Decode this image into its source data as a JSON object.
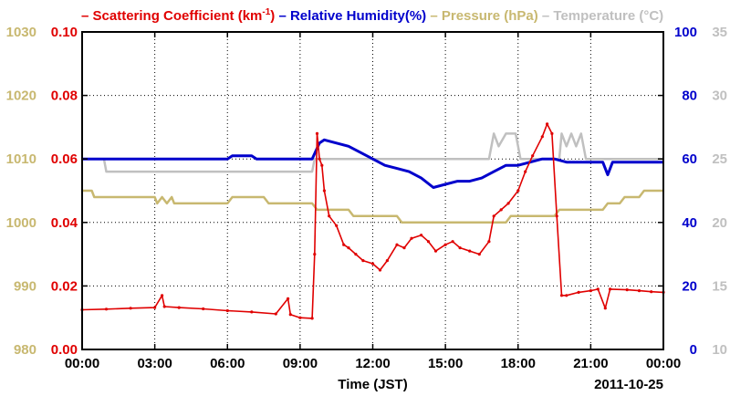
{
  "chart_data": {
    "type": "line",
    "legend": {
      "placement": "top",
      "items": [
        {
          "marker": "–",
          "label": "Scattering Coefficient (km",
          "sup": "-1",
          "suffix": ")",
          "color": "#e00000"
        },
        {
          "marker": "–",
          "label": "Relative Humidity(%)",
          "color": "#0000cc"
        },
        {
          "marker": "–",
          "label": "Pressure (hPa)",
          "color": "#c8b870"
        },
        {
          "marker": "–",
          "label": "Temperature (°C)",
          "color": "#c0c0c0"
        }
      ]
    },
    "xlabel": "Time (JST)",
    "date_label": "2011-10-25",
    "x_ticks": [
      "00:00",
      "03:00",
      "06:00",
      "09:00",
      "12:00",
      "15:00",
      "18:00",
      "21:00",
      "00:00"
    ],
    "x_range_hours": [
      0,
      24
    ],
    "grid": true,
    "axes": {
      "pressure": {
        "range": [
          980,
          1030
        ],
        "ticks": [
          "980",
          "990",
          "1000",
          "1010",
          "1020",
          "1030"
        ],
        "color": "#c8b870"
      },
      "scattering": {
        "range": [
          0,
          0.1
        ],
        "ticks": [
          "0.00",
          "0.02",
          "0.04",
          "0.06",
          "0.08",
          "0.10"
        ],
        "color": "#e00000"
      },
      "humidity": {
        "range": [
          0,
          100
        ],
        "ticks": [
          "0",
          "20",
          "40",
          "60",
          "80",
          "100"
        ],
        "color": "#0000cc"
      },
      "temperature": {
        "range": [
          10,
          35
        ],
        "ticks": [
          "10",
          "15",
          "20",
          "25",
          "30",
          "35"
        ],
        "color": "#c0c0c0"
      }
    },
    "series": [
      {
        "key": "scattering",
        "axis": "scattering",
        "color": "#e00000",
        "points": [
          [
            0,
            0.0125
          ],
          [
            1,
            0.0127
          ],
          [
            2,
            0.013
          ],
          [
            3,
            0.0132
          ],
          [
            3.3,
            0.017
          ],
          [
            3.4,
            0.0135
          ],
          [
            4,
            0.0132
          ],
          [
            5,
            0.0128
          ],
          [
            6,
            0.0122
          ],
          [
            7,
            0.0118
          ],
          [
            8,
            0.0112
          ],
          [
            8.5,
            0.016
          ],
          [
            8.6,
            0.011
          ],
          [
            9.0,
            0.01
          ],
          [
            9.5,
            0.0098
          ],
          [
            9.6,
            0.03
          ],
          [
            9.7,
            0.068
          ],
          [
            9.8,
            0.06
          ],
          [
            9.9,
            0.058
          ],
          [
            10.0,
            0.05
          ],
          [
            10.2,
            0.042
          ],
          [
            10.5,
            0.039
          ],
          [
            10.8,
            0.033
          ],
          [
            11.0,
            0.032
          ],
          [
            11.3,
            0.03
          ],
          [
            11.6,
            0.028
          ],
          [
            12.0,
            0.027
          ],
          [
            12.3,
            0.025
          ],
          [
            12.6,
            0.028
          ],
          [
            13.0,
            0.033
          ],
          [
            13.3,
            0.032
          ],
          [
            13.6,
            0.035
          ],
          [
            14.0,
            0.036
          ],
          [
            14.3,
            0.034
          ],
          [
            14.6,
            0.031
          ],
          [
            15.0,
            0.033
          ],
          [
            15.3,
            0.034
          ],
          [
            15.6,
            0.032
          ],
          [
            16.0,
            0.031
          ],
          [
            16.4,
            0.03
          ],
          [
            16.8,
            0.034
          ],
          [
            17.0,
            0.042
          ],
          [
            17.3,
            0.044
          ],
          [
            17.6,
            0.046
          ],
          [
            18.0,
            0.05
          ],
          [
            18.3,
            0.056
          ],
          [
            18.6,
            0.061
          ],
          [
            19.0,
            0.067
          ],
          [
            19.2,
            0.071
          ],
          [
            19.4,
            0.068
          ],
          [
            19.6,
            0.042
          ],
          [
            19.8,
            0.017
          ],
          [
            20.0,
            0.017
          ],
          [
            20.5,
            0.018
          ],
          [
            21.0,
            0.0185
          ],
          [
            21.3,
            0.019
          ],
          [
            21.6,
            0.013
          ],
          [
            21.8,
            0.019
          ],
          [
            22.5,
            0.0188
          ],
          [
            23.0,
            0.0185
          ],
          [
            23.5,
            0.0182
          ],
          [
            24,
            0.018
          ]
        ]
      },
      {
        "key": "humidity",
        "axis": "humidity",
        "color": "#0000cc",
        "points": [
          [
            0,
            60
          ],
          [
            2,
            60
          ],
          [
            4,
            60
          ],
          [
            6,
            60
          ],
          [
            6.2,
            61
          ],
          [
            7,
            61
          ],
          [
            7.2,
            60
          ],
          [
            9.5,
            60
          ],
          [
            9.8,
            65
          ],
          [
            10.0,
            66
          ],
          [
            10.5,
            65
          ],
          [
            11.0,
            64
          ],
          [
            11.5,
            62
          ],
          [
            12.0,
            60
          ],
          [
            12.5,
            58
          ],
          [
            13.0,
            57
          ],
          [
            13.5,
            56
          ],
          [
            14.0,
            54
          ],
          [
            14.5,
            51
          ],
          [
            15.0,
            52
          ],
          [
            15.5,
            53
          ],
          [
            16.0,
            53
          ],
          [
            16.5,
            54
          ],
          [
            17.0,
            56
          ],
          [
            17.5,
            58
          ],
          [
            18.0,
            58
          ],
          [
            18.5,
            59
          ],
          [
            19.0,
            60
          ],
          [
            19.5,
            60
          ],
          [
            20.0,
            59
          ],
          [
            21.0,
            59
          ],
          [
            21.5,
            59
          ],
          [
            21.7,
            55
          ],
          [
            21.9,
            59
          ],
          [
            22.5,
            59
          ],
          [
            23,
            59
          ],
          [
            24,
            59
          ]
        ]
      },
      {
        "key": "pressure",
        "axis": "pressure",
        "color": "#c8b870",
        "points": [
          [
            0,
            1005
          ],
          [
            0.4,
            1005
          ],
          [
            0.5,
            1004
          ],
          [
            3,
            1004
          ],
          [
            3.1,
            1003
          ],
          [
            3.3,
            1004
          ],
          [
            3.5,
            1003
          ],
          [
            3.7,
            1004
          ],
          [
            3.8,
            1003
          ],
          [
            6,
            1003
          ],
          [
            6.2,
            1004
          ],
          [
            7.5,
            1004
          ],
          [
            7.7,
            1003
          ],
          [
            9.5,
            1003
          ],
          [
            9.7,
            1002
          ],
          [
            11,
            1002
          ],
          [
            11.2,
            1001
          ],
          [
            13,
            1001
          ],
          [
            13.2,
            1000
          ],
          [
            17.5,
            1000
          ],
          [
            17.7,
            1001
          ],
          [
            19.5,
            1001
          ],
          [
            19.7,
            1002
          ],
          [
            21.5,
            1002
          ],
          [
            21.7,
            1003
          ],
          [
            22.2,
            1003
          ],
          [
            22.4,
            1004
          ],
          [
            23,
            1004
          ],
          [
            23.2,
            1005
          ],
          [
            24,
            1005
          ]
        ]
      },
      {
        "key": "temperature",
        "axis": "temperature",
        "color": "#c0c0c0",
        "points": [
          [
            0,
            25
          ],
          [
            0.9,
            25
          ],
          [
            1.0,
            24
          ],
          [
            9.5,
            24
          ],
          [
            9.6,
            25
          ],
          [
            16.8,
            25
          ],
          [
            17.0,
            27
          ],
          [
            17.2,
            26
          ],
          [
            17.5,
            27
          ],
          [
            17.9,
            27
          ],
          [
            18.1,
            25
          ],
          [
            19.7,
            25
          ],
          [
            19.8,
            27
          ],
          [
            20.0,
            26
          ],
          [
            20.2,
            27
          ],
          [
            20.4,
            26
          ],
          [
            20.6,
            27
          ],
          [
            20.8,
            25
          ],
          [
            24,
            25
          ]
        ]
      }
    ]
  }
}
